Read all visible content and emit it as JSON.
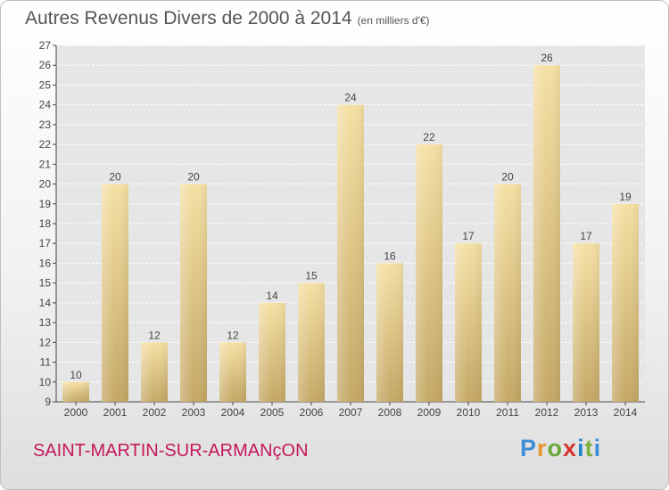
{
  "chart_data": {
    "type": "bar",
    "title": "Autres Revenus Divers de 2000 à 2014",
    "subtitle": "(en milliers d'€)",
    "categories": [
      "2000",
      "2001",
      "2002",
      "2003",
      "2004",
      "2005",
      "2006",
      "2007",
      "2008",
      "2009",
      "2010",
      "2011",
      "2012",
      "2013",
      "2014"
    ],
    "values": [
      10,
      20,
      12,
      20,
      12,
      14,
      15,
      24,
      16,
      22,
      17,
      20,
      26,
      17,
      19
    ],
    "ylim": [
      9,
      27
    ],
    "yticks": [
      9,
      10,
      11,
      12,
      13,
      14,
      15,
      16,
      17,
      18,
      19,
      20,
      21,
      22,
      23,
      24,
      25,
      26,
      27
    ],
    "grid": true,
    "bar_color": "#eed48f"
  },
  "footer": {
    "commune": "SAINT-MARTIN-SUR-ARMANçON",
    "logo": "Proxiti"
  }
}
